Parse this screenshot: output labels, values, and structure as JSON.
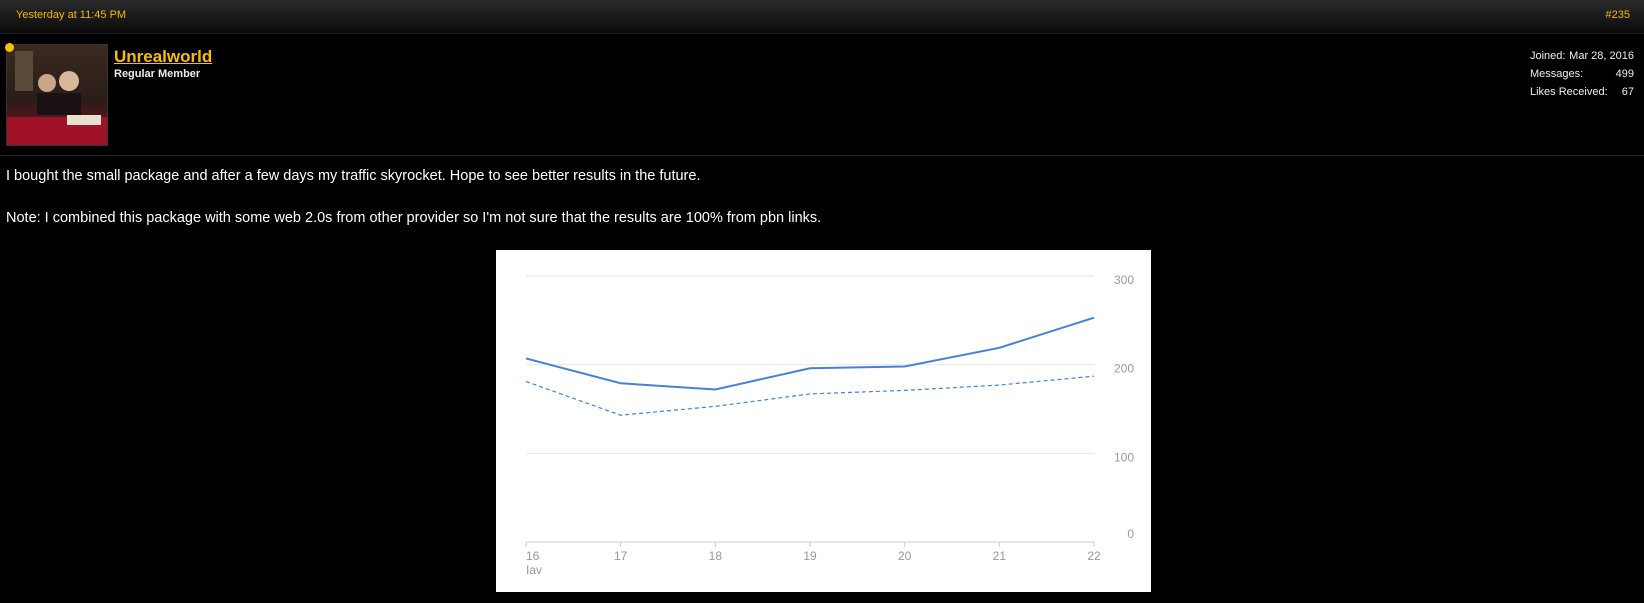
{
  "post": {
    "date": "Yesterday at 11:45 PM",
    "number": "#235"
  },
  "user": {
    "name": "Unrealworld",
    "title": "Regular Member",
    "stats": [
      {
        "label": "Joined:",
        "value": "Mar 28, 2016"
      },
      {
        "label": "Messages:",
        "value": "499"
      },
      {
        "label": "Likes Received:",
        "value": "67"
      }
    ]
  },
  "message": {
    "line1": "I bought the small package and after a few days my traffic skyrocket. Hope to see better results in the future.",
    "line2": "Note: I combined this package with some web 2.0s from other provider so I'm not sure that the results are 100% from pbn links."
  },
  "colors": {
    "accent": "#f5c000",
    "line": "#4a7fd6",
    "axis_text": "#999999"
  },
  "chart_data": {
    "type": "line",
    "x": [
      "16",
      "17",
      "18",
      "19",
      "20",
      "21",
      "22"
    ],
    "x_sublabel": "Iav",
    "ylim": [
      0,
      300
    ],
    "yticks": [
      0,
      100,
      200,
      300
    ],
    "series": [
      {
        "style": "solid",
        "values": [
          207,
          179,
          172,
          196,
          198,
          219,
          253
        ]
      },
      {
        "style": "dashed",
        "values": [
          181,
          143,
          153,
          167,
          171,
          177,
          187
        ]
      }
    ]
  }
}
